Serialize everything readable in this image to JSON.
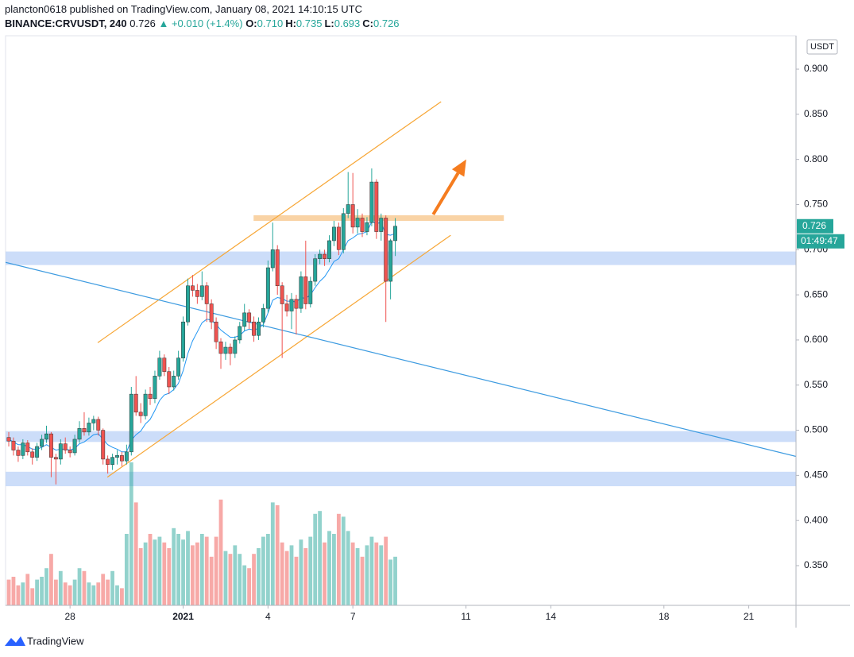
{
  "chart_data": {
    "type": "candlestick",
    "header": {
      "published": "plancton0618 published on TradingView.com, January 08, 2021 14:10:15 UTC",
      "symbol": "BINANCE:CRVUSDT, 240",
      "last": "0.726",
      "change": "+0.010 (+1.4%)",
      "ohlc": [
        {
          "key": "O:",
          "value": "0.710"
        },
        {
          "key": "H:",
          "value": "0.735"
        },
        {
          "key": "L:",
          "value": "0.693"
        },
        {
          "key": "C:",
          "value": "0.726"
        }
      ]
    },
    "currency": "USDT",
    "price_label": "0.726",
    "countdown": "01:49:47",
    "brand": "TradingView",
    "up_color": "#26a69a",
    "down_color": "#ef5350",
    "xlim": [
      -2.28,
      25.67
    ],
    "ylim": [
      0.306,
      0.937
    ],
    "vlim": [
      0,
      100
    ],
    "xticks": [
      {
        "value": 0,
        "label": "28"
      },
      {
        "value": 4,
        "label": "2021"
      },
      {
        "value": 7,
        "label": "4"
      },
      {
        "value": 10,
        "label": "7"
      },
      {
        "value": 14,
        "label": "11"
      },
      {
        "value": 17,
        "label": "14"
      },
      {
        "value": 21,
        "label": "18"
      },
      {
        "value": 24,
        "label": "21"
      }
    ],
    "yticks": [
      {
        "value": 0.35,
        "label": "0.350"
      },
      {
        "value": 0.4,
        "label": "0.400"
      },
      {
        "value": 0.45,
        "label": "0.450"
      },
      {
        "value": 0.5,
        "label": "0.500"
      },
      {
        "value": 0.55,
        "label": "0.550"
      },
      {
        "value": 0.6,
        "label": "0.600"
      },
      {
        "value": 0.65,
        "label": "0.650"
      },
      {
        "value": 0.7,
        "label": "0.700"
      },
      {
        "value": 0.75,
        "label": "0.750"
      },
      {
        "value": 0.8,
        "label": "0.800"
      },
      {
        "value": 0.85,
        "label": "0.850"
      },
      {
        "value": 0.9,
        "label": "0.900"
      }
    ],
    "x": [
      -2.167,
      -2,
      -1.833,
      -1.667,
      -1.5,
      -1.333,
      -1.167,
      -1,
      -0.833,
      -0.667,
      -0.5,
      -0.333,
      -0.167,
      0,
      0.167,
      0.333,
      0.5,
      0.667,
      0.833,
      1,
      1.167,
      1.333,
      1.5,
      1.667,
      1.833,
      2,
      2.167,
      2.333,
      2.5,
      2.667,
      2.833,
      3,
      3.167,
      3.333,
      3.5,
      3.667,
      3.833,
      4,
      4.167,
      4.333,
      4.5,
      4.667,
      4.833,
      5,
      5.167,
      5.333,
      5.5,
      5.667,
      5.833,
      6,
      6.167,
      6.333,
      6.5,
      6.667,
      6.833,
      7,
      7.167,
      7.333,
      7.5,
      7.667,
      7.833,
      8,
      8.167,
      8.333,
      8.5,
      8.667,
      8.833,
      9,
      9.167,
      9.333,
      9.5,
      9.667,
      9.833,
      10,
      10.167,
      10.333,
      10.5,
      10.667,
      10.833,
      11,
      11.167,
      11.333,
      11.5
    ],
    "candles": [
      [
        0.492,
        0.498,
        0.482,
        0.488
      ],
      [
        0.488,
        0.492,
        0.472,
        0.478
      ],
      [
        0.478,
        0.482,
        0.465,
        0.472
      ],
      [
        0.472,
        0.49,
        0.468,
        0.486
      ],
      [
        0.486,
        0.489,
        0.472,
        0.476
      ],
      [
        0.476,
        0.48,
        0.462,
        0.47
      ],
      [
        0.47,
        0.486,
        0.466,
        0.482
      ],
      [
        0.482,
        0.495,
        0.478,
        0.49
      ],
      [
        0.49,
        0.505,
        0.486,
        0.496
      ],
      [
        0.496,
        0.498,
        0.448,
        0.47
      ],
      [
        0.47,
        0.474,
        0.44,
        0.468
      ],
      [
        0.468,
        0.49,
        0.462,
        0.485
      ],
      [
        0.485,
        0.492,
        0.474,
        0.478
      ],
      [
        0.478,
        0.482,
        0.47,
        0.475
      ],
      [
        0.475,
        0.495,
        0.472,
        0.49
      ],
      [
        0.49,
        0.51,
        0.486,
        0.502
      ],
      [
        0.502,
        0.52,
        0.494,
        0.498
      ],
      [
        0.498,
        0.514,
        0.494,
        0.508
      ],
      [
        0.508,
        0.516,
        0.5,
        0.512
      ],
      [
        0.512,
        0.515,
        0.494,
        0.5
      ],
      [
        0.5,
        0.502,
        0.462,
        0.468
      ],
      [
        0.468,
        0.472,
        0.452,
        0.462
      ],
      [
        0.462,
        0.474,
        0.456,
        0.47
      ],
      [
        0.47,
        0.478,
        0.462,
        0.472
      ],
      [
        0.472,
        0.476,
        0.46,
        0.466
      ],
      [
        0.466,
        0.484,
        0.462,
        0.476
      ],
      [
        0.476,
        0.548,
        0.472,
        0.54
      ],
      [
        0.54,
        0.56,
        0.516,
        0.52
      ],
      [
        0.52,
        0.53,
        0.508,
        0.516
      ],
      [
        0.516,
        0.545,
        0.512,
        0.54
      ],
      [
        0.54,
        0.548,
        0.528,
        0.535
      ],
      [
        0.535,
        0.566,
        0.53,
        0.56
      ],
      [
        0.56,
        0.588,
        0.556,
        0.58
      ],
      [
        0.58,
        0.584,
        0.56,
        0.565
      ],
      [
        0.565,
        0.57,
        0.54,
        0.548
      ],
      [
        0.548,
        0.566,
        0.544,
        0.56
      ],
      [
        0.56,
        0.588,
        0.556,
        0.58
      ],
      [
        0.58,
        0.626,
        0.576,
        0.62
      ],
      [
        0.62,
        0.668,
        0.616,
        0.66
      ],
      [
        0.66,
        0.672,
        0.648,
        0.655
      ],
      [
        0.655,
        0.662,
        0.64,
        0.648
      ],
      [
        0.648,
        0.676,
        0.644,
        0.66
      ],
      [
        0.66,
        0.664,
        0.62,
        0.64
      ],
      [
        0.64,
        0.645,
        0.612,
        0.62
      ],
      [
        0.62,
        0.625,
        0.59,
        0.598
      ],
      [
        0.598,
        0.602,
        0.568,
        0.585
      ],
      [
        0.585,
        0.598,
        0.578,
        0.592
      ],
      [
        0.592,
        0.596,
        0.572,
        0.585
      ],
      [
        0.585,
        0.604,
        0.58,
        0.6
      ],
      [
        0.6,
        0.62,
        0.596,
        0.615
      ],
      [
        0.615,
        0.64,
        0.61,
        0.63
      ],
      [
        0.63,
        0.634,
        0.612,
        0.62
      ],
      [
        0.62,
        0.626,
        0.598,
        0.605
      ],
      [
        0.605,
        0.625,
        0.6,
        0.62
      ],
      [
        0.62,
        0.64,
        0.614,
        0.635
      ],
      [
        0.635,
        0.688,
        0.63,
        0.68
      ],
      [
        0.68,
        0.73,
        0.676,
        0.7
      ],
      [
        0.7,
        0.705,
        0.65,
        0.66
      ],
      [
        0.66,
        0.664,
        0.58,
        0.64
      ],
      [
        0.64,
        0.65,
        0.626,
        0.632
      ],
      [
        0.632,
        0.652,
        0.612,
        0.645
      ],
      [
        0.645,
        0.65,
        0.606,
        0.635
      ],
      [
        0.635,
        0.676,
        0.63,
        0.67
      ],
      [
        0.67,
        0.71,
        0.634,
        0.64
      ],
      [
        0.64,
        0.67,
        0.636,
        0.665
      ],
      [
        0.665,
        0.695,
        0.66,
        0.69
      ],
      [
        0.69,
        0.7,
        0.684,
        0.695
      ],
      [
        0.695,
        0.7,
        0.682,
        0.69
      ],
      [
        0.69,
        0.716,
        0.686,
        0.71
      ],
      [
        0.71,
        0.732,
        0.704,
        0.725
      ],
      [
        0.725,
        0.73,
        0.694,
        0.7
      ],
      [
        0.7,
        0.746,
        0.696,
        0.74
      ],
      [
        0.74,
        0.786,
        0.735,
        0.75
      ],
      [
        0.75,
        0.785,
        0.718,
        0.725
      ],
      [
        0.725,
        0.745,
        0.718,
        0.735
      ],
      [
        0.735,
        0.74,
        0.714,
        0.72
      ],
      [
        0.72,
        0.736,
        0.716,
        0.73
      ],
      [
        0.73,
        0.79,
        0.726,
        0.775
      ],
      [
        0.775,
        0.778,
        0.712,
        0.72
      ],
      [
        0.72,
        0.74,
        0.71,
        0.735
      ],
      [
        0.735,
        0.738,
        0.62,
        0.665
      ],
      [
        0.665,
        0.712,
        0.645,
        0.71
      ],
      [
        0.71,
        0.735,
        0.693,
        0.726
      ]
    ],
    "volume": [
      18,
      20,
      14,
      16,
      22,
      12,
      18,
      20,
      26,
      36,
      18,
      24,
      16,
      14,
      18,
      26,
      24,
      16,
      14,
      16,
      22,
      18,
      24,
      14,
      12,
      50,
      100,
      72,
      40,
      44,
      50,
      46,
      48,
      44,
      40,
      54,
      50,
      46,
      52,
      42,
      44,
      50,
      48,
      34,
      48,
      74,
      38,
      36,
      42,
      36,
      28,
      26,
      36,
      40,
      48,
      50,
      72,
      70,
      44,
      38,
      42,
      34,
      46,
      40,
      48,
      64,
      66,
      44,
      52,
      50,
      64,
      62,
      52,
      44,
      40,
      34,
      42,
      48,
      44,
      42,
      48,
      32,
      34
    ],
    "ma": {
      "color": "#2196f3",
      "values": [
        0.49,
        0.487,
        0.484,
        0.484,
        0.482,
        0.479,
        0.479,
        0.481,
        0.484,
        0.481,
        0.478,
        0.479,
        0.479,
        0.478,
        0.48,
        0.485,
        0.487,
        0.491,
        0.495,
        0.496,
        0.49,
        0.484,
        0.481,
        0.479,
        0.476,
        0.476,
        0.489,
        0.495,
        0.499,
        0.507,
        0.512,
        0.522,
        0.533,
        0.539,
        0.541,
        0.545,
        0.552,
        0.566,
        0.585,
        0.599,
        0.609,
        0.619,
        0.623,
        0.622,
        0.617,
        0.611,
        0.607,
        0.603,
        0.603,
        0.605,
        0.61,
        0.612,
        0.611,
        0.613,
        0.617,
        0.63,
        0.644,
        0.647,
        0.646,
        0.643,
        0.643,
        0.642,
        0.647,
        0.646,
        0.65,
        0.658,
        0.665,
        0.67,
        0.678,
        0.687,
        0.69,
        0.7,
        0.71,
        0.713,
        0.717,
        0.718,
        0.72,
        0.731,
        0.729,
        0.73,
        0.717,
        0.716,
        0.718
      ]
    },
    "zones": {
      "color": "#bbd2f7",
      "ranges": [
        [
          0.683,
          0.698
        ],
        [
          0.487,
          0.499
        ],
        [
          0.438,
          0.454
        ]
      ]
    },
    "lines": [
      {
        "color": "#f7a635",
        "x": [
          0.98,
          13.12
        ],
        "y": [
          0.597,
          0.864
        ]
      },
      {
        "color": "#f7a635",
        "x": [
          1.32,
          13.46
        ],
        "y": [
          0.448,
          0.716
        ]
      },
      {
        "color": "#3d9be0",
        "x": [
          -2.28,
          25.67
        ],
        "y": [
          0.686,
          0.471
        ]
      }
    ],
    "resistance": {
      "color": "#f9d3a5",
      "x": [
        6.49,
        15.34
      ],
      "y": 0.735
    },
    "arrow": {
      "color": "#f57c1f",
      "x": [
        12.84,
        14.01
      ],
      "y": [
        0.739,
        0.8
      ]
    }
  }
}
